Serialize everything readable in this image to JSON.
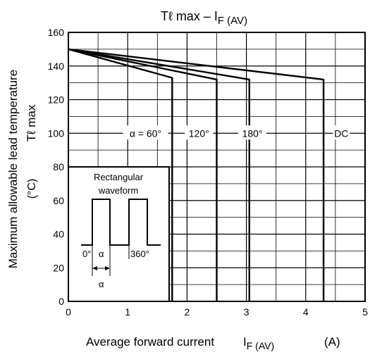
{
  "chart_data": {
    "type": "line",
    "title_main": "Tℓ max – I",
    "title_sub": "F (AV)",
    "ylabel_line1": "Maximum allowable lead temperature",
    "ylabel_line2": "Tℓ max",
    "ylabel_unit": "(°C)",
    "xlabel_main": "Average forward current",
    "xlabel_symbol": "I",
    "xlabel_sub": "F (AV)",
    "xlabel_unit": "(A)",
    "xlim": [
      0,
      5
    ],
    "ylim": [
      0,
      160
    ],
    "x_ticks": [
      0,
      1,
      2,
      3,
      4,
      5
    ],
    "x_tick_labels": [
      "0",
      "1",
      "2",
      "3",
      "4",
      "5"
    ],
    "y_ticks": [
      0,
      20,
      40,
      60,
      80,
      100,
      120,
      140,
      160
    ],
    "y_tick_labels": [
      "0",
      "20",
      "40",
      "60",
      "80",
      "100",
      "120",
      "140",
      "160"
    ],
    "grid": true,
    "series": [
      {
        "name": "α = 60°",
        "x": [
          0,
          1.75,
          1.75
        ],
        "y": [
          150,
          133,
          0
        ]
      },
      {
        "name": "120°",
        "x": [
          0,
          2.5,
          2.5
        ],
        "y": [
          150,
          132,
          0
        ]
      },
      {
        "name": "180°",
        "x": [
          0,
          3.05,
          3.05
        ],
        "y": [
          150,
          132,
          0
        ]
      },
      {
        "name": "DC",
        "x": [
          0,
          4.3,
          4.3
        ],
        "y": [
          150,
          132,
          0
        ]
      }
    ],
    "series_label_y": 100,
    "series_label_x": [
      1.3,
      2.2,
      3.1,
      4.6
    ],
    "inset": {
      "title_line1": "Rectangular",
      "title_line2": "waveform",
      "label_zero": "0°",
      "label_alpha": "α",
      "label_360": "360°",
      "label_alpha_bottom": "α"
    }
  }
}
